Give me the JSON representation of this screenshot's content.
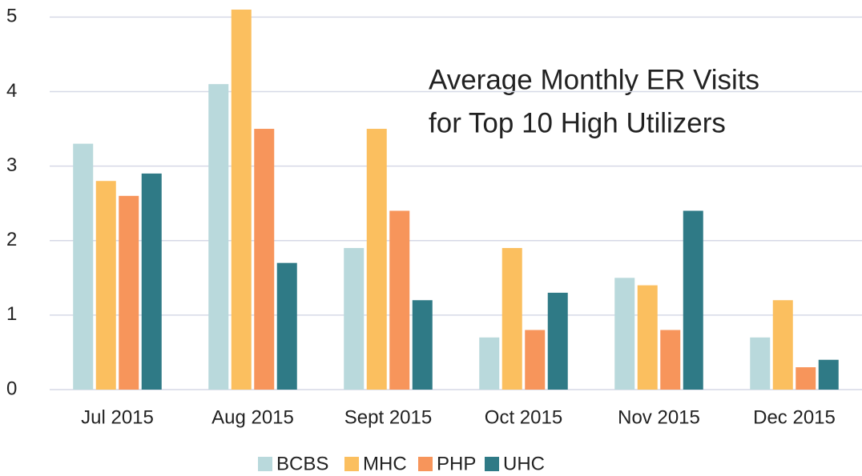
{
  "chart_data": {
    "type": "bar",
    "title": [
      "Average Monthly ER Visits",
      "for Top 10 High Utilizers"
    ],
    "categories": [
      "Jul 2015",
      "Aug 2015",
      "Sept 2015",
      "Oct 2015",
      "Nov 2015",
      "Dec 2015"
    ],
    "series": [
      {
        "name": "BCBS",
        "color": "#b9d9dc",
        "values": [
          3.3,
          4.1,
          1.9,
          0.7,
          1.5,
          0.7
        ]
      },
      {
        "name": "MHC",
        "color": "#fbbf5f",
        "values": [
          2.8,
          5.1,
          3.5,
          1.9,
          1.4,
          1.2
        ]
      },
      {
        "name": "PHP",
        "color": "#f7955b",
        "values": [
          2.6,
          3.5,
          2.4,
          0.8,
          0.8,
          0.3
        ]
      },
      {
        "name": "UHC",
        "color": "#2f7a86",
        "values": [
          2.9,
          1.7,
          1.2,
          1.3,
          2.4,
          0.4
        ]
      }
    ],
    "ylim": [
      0,
      5.1
    ],
    "yticks": [
      0,
      1,
      2,
      3,
      4,
      5
    ],
    "grid": true,
    "legend": "bottom"
  }
}
